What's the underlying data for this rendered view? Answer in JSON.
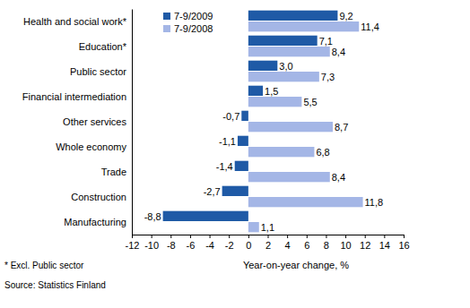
{
  "chart_data": {
    "type": "bar",
    "orientation": "horizontal",
    "categories": [
      "Health and social work*",
      "Education*",
      "Public sector",
      "Financial intermediation",
      "Other services",
      "Whole economy",
      "Trade",
      "Construction",
      "Manufacturing"
    ],
    "series": [
      {
        "name": "7-9/2009",
        "color": "#1f5aa6",
        "values": [
          9.2,
          7.1,
          3.0,
          1.5,
          -0.7,
          -1.1,
          -1.4,
          -2.7,
          -8.8
        ],
        "value_labels": [
          "9,2",
          "7,1",
          "3,0",
          "1,5",
          "-0,7",
          "-1,1",
          "-1,4",
          "-2,7",
          "-8,8"
        ]
      },
      {
        "name": "7-9/2008",
        "color": "#a4b6e6",
        "values": [
          11.4,
          8.4,
          7.3,
          5.5,
          8.7,
          6.8,
          8.4,
          11.8,
          1.1
        ],
        "value_labels": [
          "11,4",
          "8,4",
          "7,3",
          "5,5",
          "8,7",
          "6,8",
          "8,4",
          "11,8",
          "1,1"
        ]
      }
    ],
    "x_label": "Year-on-year change, %",
    "xlim": [
      -12,
      16
    ],
    "xticks": [
      -12,
      -10,
      -8,
      -6,
      -4,
      -2,
      0,
      2,
      4,
      6,
      8,
      10,
      12,
      14,
      16
    ],
    "data_labels": true,
    "legend": "top-left",
    "grid": false,
    "annotations": [
      "* Excl. Public sector",
      "Source: Statistics Finland"
    ]
  }
}
